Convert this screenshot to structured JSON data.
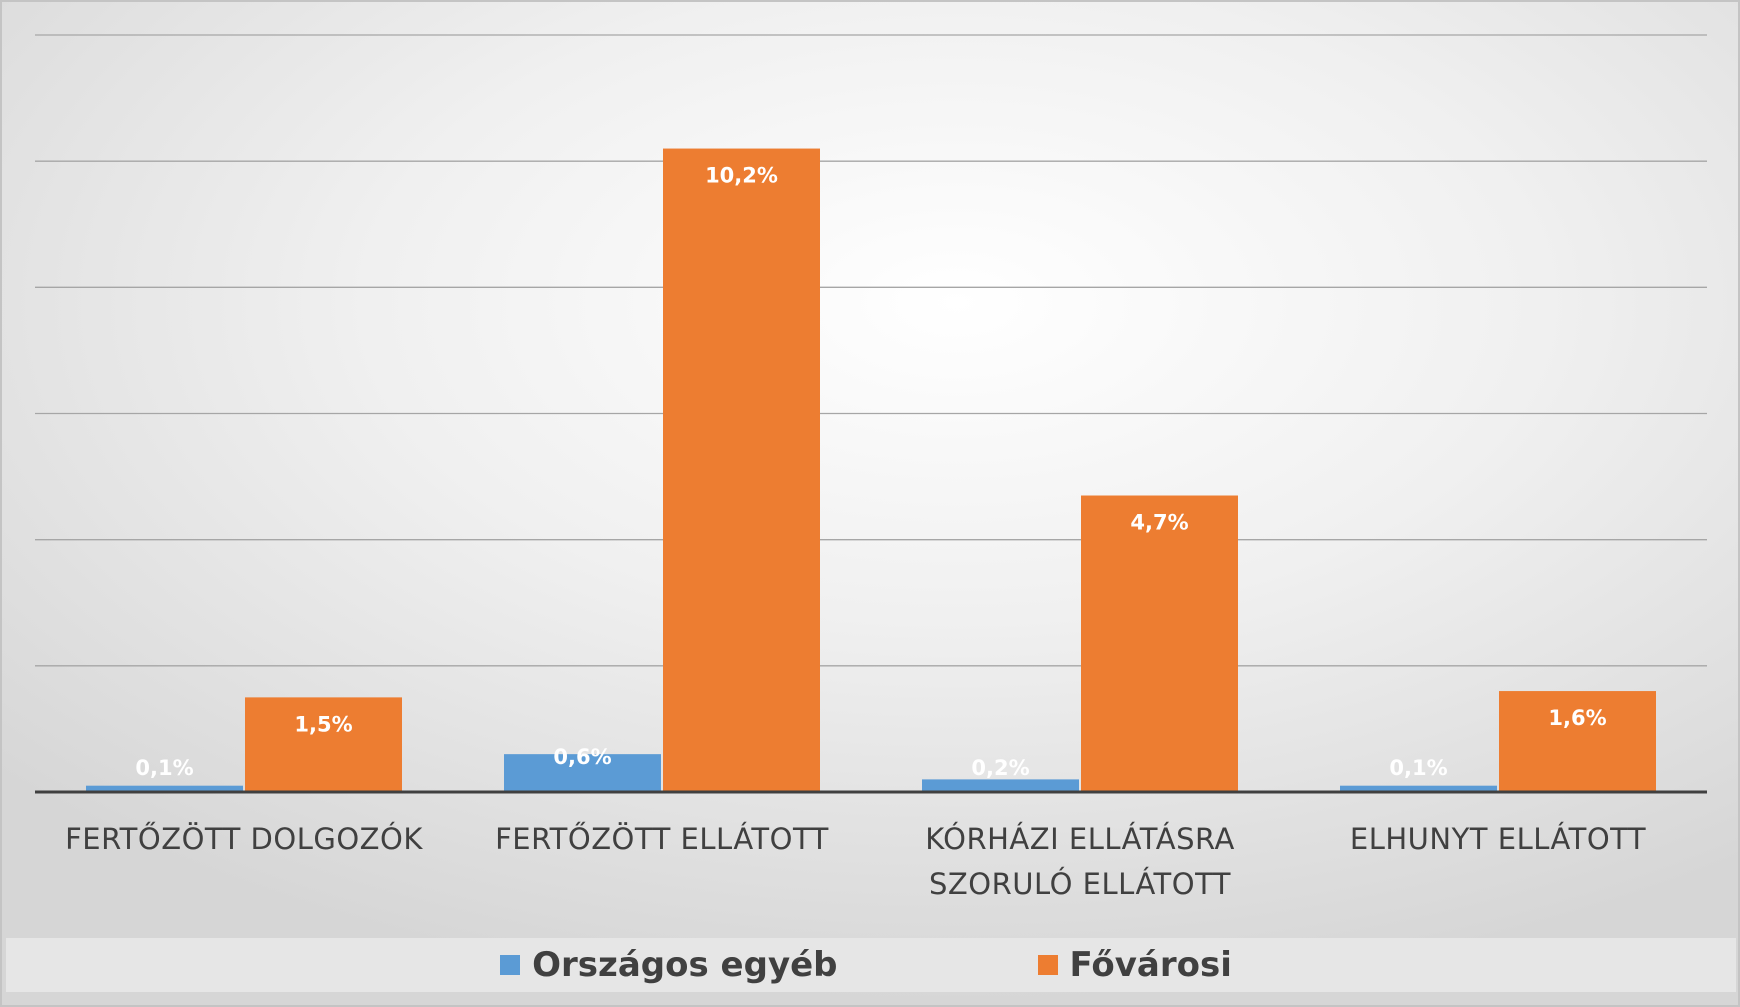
{
  "chart_data": {
    "type": "bar",
    "categories": [
      [
        "FERTŐZÖTT DOLGOZÓK"
      ],
      [
        "FERTŐZÖTT ELLÁTOTT"
      ],
      [
        "KÓRHÁZI ELLÁTÁSRA",
        "SZORULÓ ELLÁTOTT"
      ],
      [
        "ELHUNYT ELLÁTOTT"
      ]
    ],
    "series": [
      {
        "name": "Országos egyéb",
        "color": "#5b9bd5",
        "values": [
          0.1,
          0.6,
          0.2,
          0.1
        ],
        "labels": [
          "0,1%",
          "0,6%",
          "0,2%",
          "0,1%"
        ]
      },
      {
        "name": "Fővárosi",
        "color": "#ed7d31",
        "values": [
          1.5,
          10.2,
          4.7,
          1.6
        ],
        "labels": [
          "1,5%",
          "10,2%",
          "4,7%",
          "1,6%"
        ]
      }
    ],
    "ylim": [
      0,
      12
    ],
    "gridlines": [
      2,
      4,
      6,
      8,
      10,
      12
    ],
    "grid": true,
    "legend": "bottom",
    "axis_color": "#404040",
    "grid_color": "#a6a6a6"
  }
}
